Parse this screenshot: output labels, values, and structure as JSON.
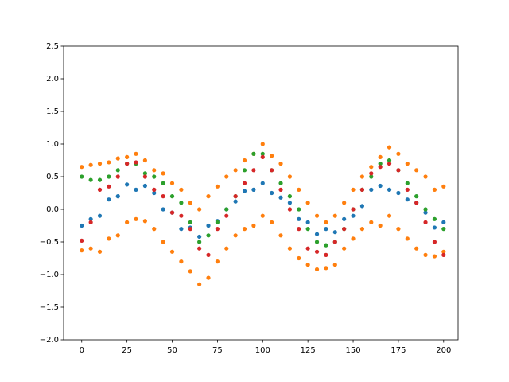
{
  "chart_data": {
    "type": "scatter",
    "x": [
      0,
      5,
      10,
      15,
      20,
      25,
      30,
      35,
      40,
      45,
      50,
      55,
      60,
      65,
      70,
      75,
      80,
      85,
      90,
      95,
      100,
      105,
      110,
      115,
      120,
      125,
      130,
      135,
      140,
      145,
      150,
      155,
      160,
      165,
      170,
      175,
      180,
      185,
      190,
      195,
      200
    ],
    "series": [
      {
        "color": "#1f77b4",
        "values": [
          -0.25,
          -0.15,
          -0.1,
          0.15,
          0.2,
          0.38,
          0.3,
          0.36,
          0.25,
          0.0,
          -0.05,
          -0.3,
          -0.28,
          -0.42,
          -0.25,
          -0.18,
          0.0,
          0.12,
          0.28,
          0.3,
          0.4,
          0.25,
          0.18,
          0.1,
          -0.15,
          -0.2,
          -0.38,
          -0.3,
          -0.35,
          -0.15,
          -0.1,
          0.05,
          0.3,
          0.36,
          0.3,
          0.25,
          0.15,
          0.1,
          -0.05,
          -0.28,
          -0.2
        ]
      },
      {
        "color": "#ff7f0e",
        "values": [
          0.65,
          0.68,
          0.7,
          0.72,
          0.78,
          0.8,
          0.85,
          0.75,
          0.6,
          0.55,
          0.4,
          0.3,
          0.1,
          0.0,
          0.2,
          0.35,
          0.5,
          0.6,
          0.75,
          0.85,
          1.0,
          0.82,
          0.7,
          0.5,
          0.3,
          0.1,
          -0.1,
          -0.2,
          -0.1,
          0.1,
          0.3,
          0.5,
          0.65,
          0.8,
          0.95,
          0.85,
          0.7,
          0.6,
          0.5,
          0.3,
          0.35
        ]
      },
      {
        "color": "#ff7f0e",
        "values": [
          -0.63,
          -0.6,
          -0.65,
          -0.45,
          -0.4,
          -0.2,
          -0.15,
          -0.18,
          -0.3,
          -0.5,
          -0.65,
          -0.8,
          -0.95,
          -1.15,
          -1.05,
          -0.8,
          -0.6,
          -0.4,
          -0.3,
          -0.25,
          -0.1,
          -0.2,
          -0.4,
          -0.6,
          -0.75,
          -0.85,
          -0.92,
          -0.9,
          -0.85,
          -0.6,
          -0.45,
          -0.3,
          -0.2,
          -0.25,
          -0.1,
          -0.3,
          -0.45,
          -0.6,
          -0.7,
          -0.72,
          -0.65
        ]
      },
      {
        "color": "#2ca02c",
        "values": [
          0.5,
          0.45,
          0.45,
          0.5,
          0.6,
          0.7,
          0.7,
          0.55,
          0.5,
          0.4,
          0.2,
          0.1,
          -0.2,
          -0.5,
          -0.4,
          -0.2,
          0.0,
          0.2,
          0.6,
          0.85,
          0.85,
          0.6,
          0.4,
          0.2,
          0.0,
          -0.3,
          -0.5,
          -0.55,
          -0.5,
          -0.3,
          0.0,
          0.3,
          0.5,
          0.7,
          0.75,
          0.6,
          0.4,
          0.2,
          0.0,
          -0.15,
          -0.3
        ]
      },
      {
        "color": "#d62728",
        "values": [
          -0.48,
          -0.2,
          0.3,
          0.35,
          0.5,
          0.7,
          0.72,
          0.5,
          0.3,
          0.2,
          -0.05,
          -0.1,
          -0.3,
          -0.6,
          -0.7,
          -0.3,
          -0.1,
          0.2,
          0.4,
          0.6,
          0.8,
          0.6,
          0.3,
          0.0,
          -0.3,
          -0.6,
          -0.65,
          -0.7,
          -0.5,
          -0.3,
          0.0,
          0.3,
          0.55,
          0.65,
          0.7,
          0.6,
          0.3,
          0.1,
          -0.2,
          -0.5,
          -0.7
        ]
      }
    ],
    "xlim": [
      -10,
      208
    ],
    "xticks": [
      0,
      25,
      50,
      75,
      100,
      125,
      150,
      175,
      200
    ],
    "ylim": [
      -2,
      2.5
    ],
    "yticks": [
      {
        "value": -2,
        "label": "−2.0"
      },
      {
        "value": -1.5,
        "label": "−1.5"
      },
      {
        "value": -1,
        "label": "−1.0"
      },
      {
        "value": -0.5,
        "label": "−0.5"
      },
      {
        "value": 0,
        "label": "0.0"
      },
      {
        "value": 0.5,
        "label": "0.5"
      },
      {
        "value": 1,
        "label": "1.0"
      },
      {
        "value": 1.5,
        "label": "1.5"
      },
      {
        "value": 2,
        "label": "2.0"
      },
      {
        "value": 2.5,
        "label": "2.5"
      }
    ]
  }
}
